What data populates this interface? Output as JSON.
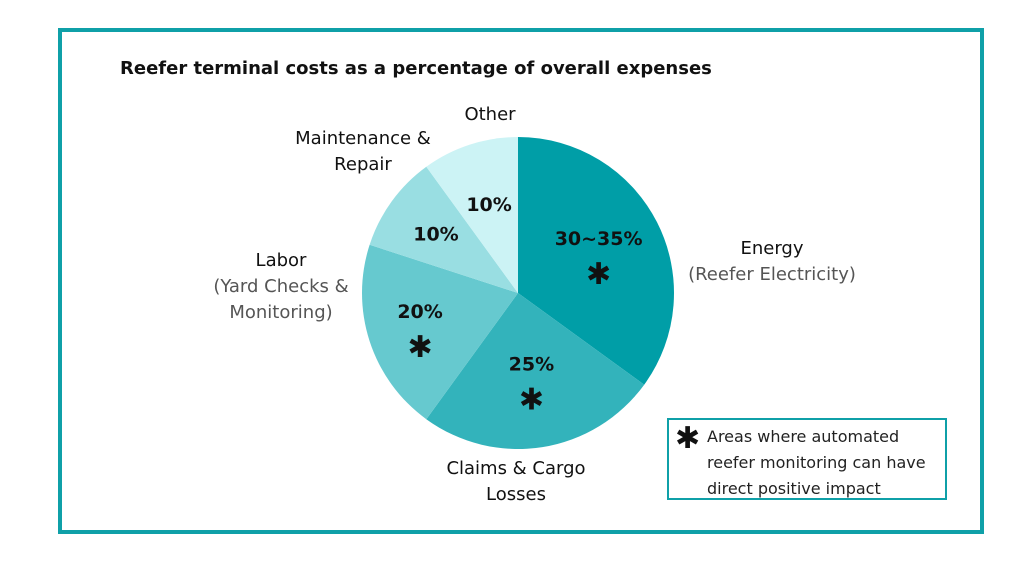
{
  "chart_data": {
    "type": "pie",
    "title": "Reefer terminal costs as a percentage of overall expenses",
    "slices": [
      {
        "label": "Energy",
        "sublabel": "(Reefer Electricity)",
        "value": 35,
        "value_label": "30~35%",
        "marked": true,
        "color": "#009ea7"
      },
      {
        "label": "Claims & Cargo Losses",
        "sublabel": "",
        "value": 25,
        "value_label": "25%",
        "marked": true,
        "color": "#33b3bb"
      },
      {
        "label": "Labor",
        "sublabel": "(Yard Checks & Monitoring)",
        "value": 20,
        "value_label": "20%",
        "marked": true,
        "color": "#66c9cf"
      },
      {
        "label": "Maintenance & Repair",
        "sublabel": "",
        "value": 10,
        "value_label": "10%",
        "marked": false,
        "color": "#99dee2"
      },
      {
        "label": "Other",
        "sublabel": "",
        "value": 10,
        "value_label": "10%",
        "marked": false,
        "color": "#ccf3f5"
      }
    ],
    "start": "top",
    "direction": "clockwise",
    "marker_symbol": "✱",
    "legend": {
      "symbol": "✱",
      "text": "Areas where automated reefer monitoring can have direct positive impact",
      "placement": "bottom-right"
    },
    "frame_color": "#0fa0a8"
  }
}
